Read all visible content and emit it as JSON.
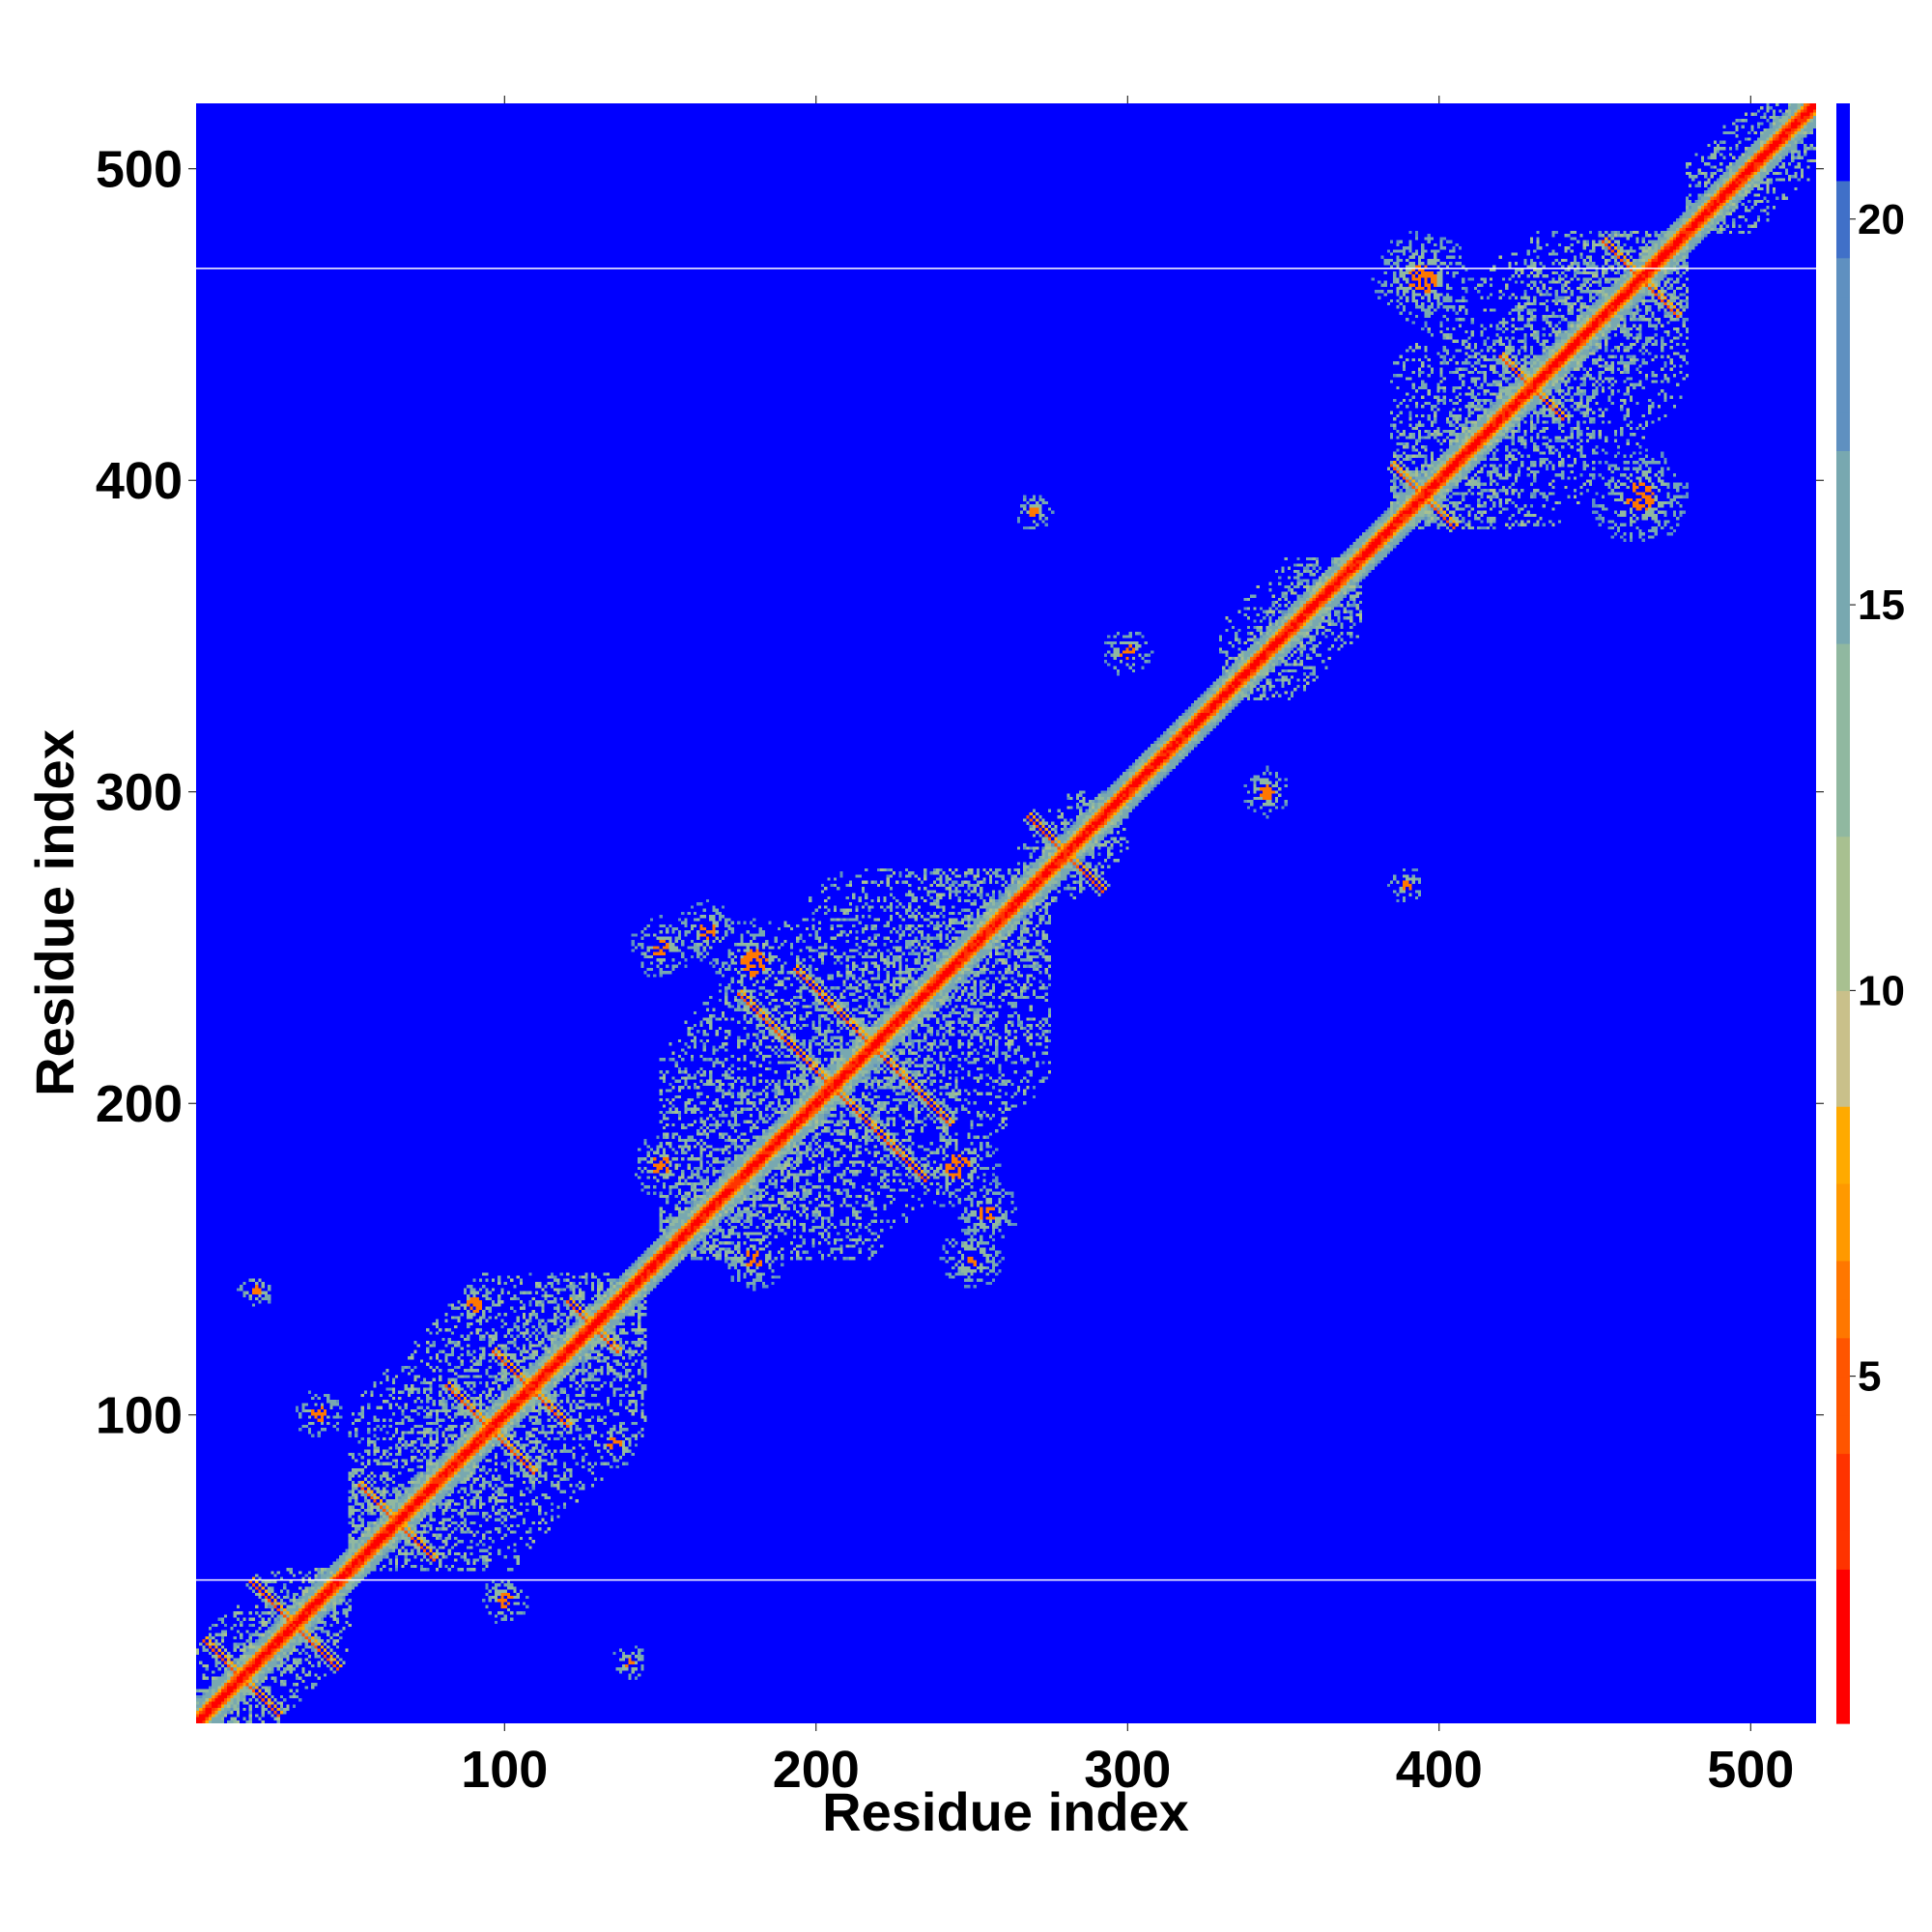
{
  "chart_data": {
    "type": "heatmap",
    "title": "",
    "xlabel": "Residue index",
    "ylabel": "Residue index",
    "xlim": [
      1,
      521
    ],
    "ylim": [
      1,
      521
    ],
    "x_ticks": [
      100,
      200,
      300,
      400,
      500
    ],
    "y_ticks": [
      100,
      200,
      300,
      400,
      500
    ],
    "colorbar": {
      "range": [
        0.5,
        21.5
      ],
      "ticks": [
        5,
        10,
        15,
        20
      ],
      "colors": [
        "#ff0000",
        "#ff3300",
        "#ff5500",
        "#ff7700",
        "#ff9900",
        "#ffaa00",
        "#c9c08a",
        "#a8c090",
        "#90b8a0",
        "#78a8b0",
        "#5f90c0",
        "#4070c8",
        "#0000ff"
      ],
      "stops": [
        0.5,
        2.5,
        4.0,
        5.5,
        6.5,
        7.5,
        8.5,
        10.0,
        12.0,
        14.5,
        17.0,
        19.5,
        20.5
      ],
      "saturation_color": "#0000ff"
    },
    "background_value": 21,
    "horizontal_lines_y": [
      47,
      468
    ],
    "description_of_values": "Pairwise residue distance map; diagonal values near 1-4, contact patches 8-18, non-contacts 21",
    "features": {
      "diagonal": {
        "from": 1,
        "to": 521
      },
      "blocks": [
        {
          "x": [
            1,
            50
          ],
          "y": [
            1,
            50
          ]
        },
        {
          "x": [
            50,
            145
          ],
          "y": [
            50,
            145
          ]
        },
        {
          "x": [
            150,
            275
          ],
          "y": [
            150,
            275
          ]
        },
        {
          "x": [
            265,
            300
          ],
          "y": [
            265,
            300
          ]
        },
        {
          "x": [
            330,
            375
          ],
          "y": [
            330,
            375
          ]
        },
        {
          "x": [
            385,
            480
          ],
          "y": [
            385,
            480
          ]
        },
        {
          "x": [
            480,
            521
          ],
          "y": [
            480,
            521
          ]
        }
      ],
      "anti_diagonal_crosses": [
        {
          "cx": 15,
          "cy": 15,
          "r": 12
        },
        {
          "cx": 32,
          "cy": 32,
          "r": 14
        },
        {
          "cx": 65,
          "cy": 65,
          "r": 12
        },
        {
          "cx": 95,
          "cy": 95,
          "r": 14
        },
        {
          "cx": 108,
          "cy": 108,
          "r": 12
        },
        {
          "cx": 128,
          "cy": 128,
          "r": 8
        },
        {
          "cx": 205,
          "cy": 205,
          "r": 30
        },
        {
          "cx": 218,
          "cy": 218,
          "r": 25
        },
        {
          "cx": 280,
          "cy": 280,
          "r": 12
        },
        {
          "cx": 395,
          "cy": 395,
          "r": 10
        },
        {
          "cx": 430,
          "cy": 430,
          "r": 10
        },
        {
          "cx": 465,
          "cy": 465,
          "r": 12
        }
      ],
      "off_diagonal_patches": [
        {
          "x": 270,
          "y": 390,
          "r": 6
        },
        {
          "x": 390,
          "y": 270,
          "r": 6
        },
        {
          "x": 395,
          "y": 465,
          "r": 16
        },
        {
          "x": 465,
          "y": 395,
          "r": 16
        },
        {
          "x": 345,
          "y": 300,
          "r": 8
        },
        {
          "x": 300,
          "y": 345,
          "r": 8
        },
        {
          "x": 140,
          "y": 20,
          "r": 6
        },
        {
          "x": 20,
          "y": 140,
          "r": 6
        },
        {
          "x": 90,
          "y": 135,
          "r": 8
        },
        {
          "x": 135,
          "y": 90,
          "r": 8
        },
        {
          "x": 100,
          "y": 40,
          "r": 8
        },
        {
          "x": 40,
          "y": 100,
          "r": 8
        },
        {
          "x": 180,
          "y": 150,
          "r": 10
        },
        {
          "x": 150,
          "y": 180,
          "r": 10
        },
        {
          "x": 165,
          "y": 255,
          "r": 10
        },
        {
          "x": 255,
          "y": 165,
          "r": 10
        },
        {
          "x": 250,
          "y": 150,
          "r": 10
        },
        {
          "x": 150,
          "y": 250,
          "r": 10
        },
        {
          "x": 245,
          "y": 180,
          "r": 14
        },
        {
          "x": 180,
          "y": 245,
          "r": 14
        }
      ]
    }
  }
}
